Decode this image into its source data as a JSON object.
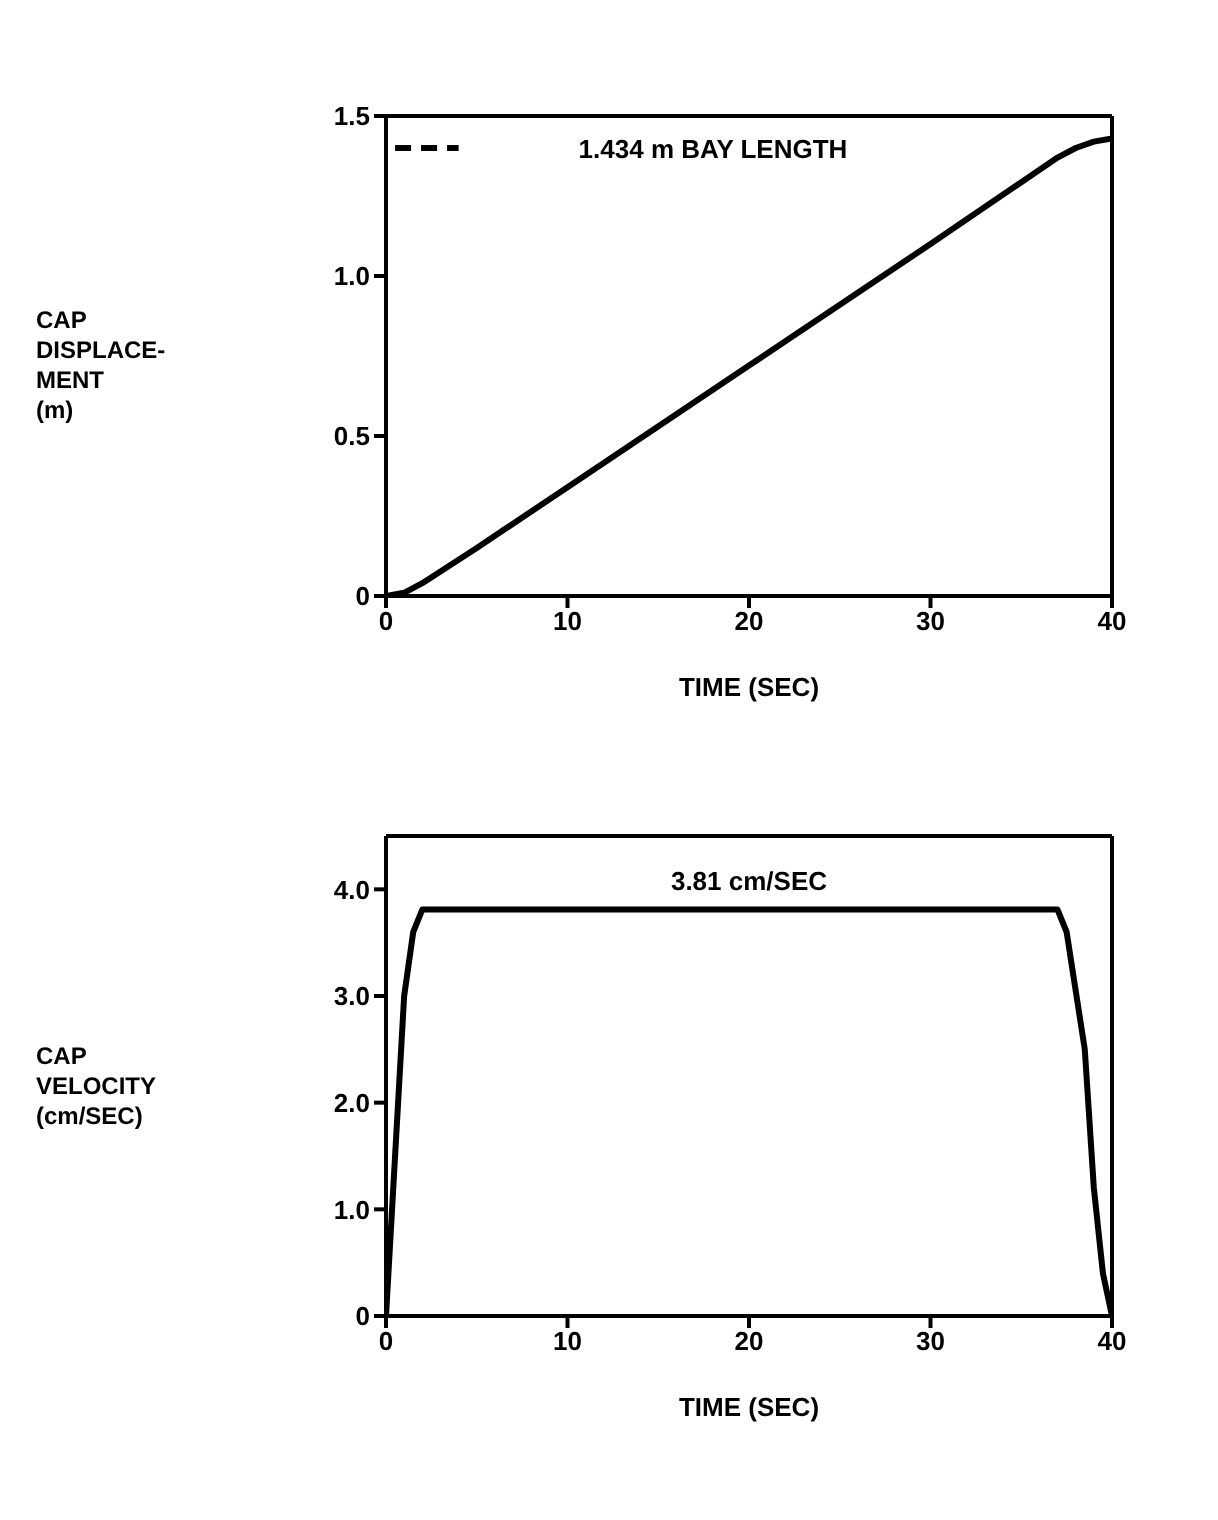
{
  "chart_data": [
    {
      "type": "line",
      "xlabel": "TIME (SEC)",
      "ylabel": "CAP\nDISPLACE-\nMENT\n(m)",
      "x": [
        0,
        1,
        2,
        5,
        10,
        20,
        30,
        37,
        38,
        39,
        40
      ],
      "series": [
        {
          "color": "#000000",
          "values": [
            0,
            0.01,
            0.04,
            0.15,
            0.34,
            0.72,
            1.1,
            1.37,
            1.4,
            1.42,
            1.43
          ]
        }
      ],
      "xlim": [
        0,
        40
      ],
      "xticks": [
        0,
        10,
        20,
        30,
        40
      ],
      "ylim": [
        0,
        1.5
      ],
      "yticks": [
        0,
        0.5,
        {
          "value": 1,
          "label": "1.0"
        },
        1.5
      ],
      "marker": "none",
      "line_style": "solid",
      "ref_lines": [
        {
          "axis": "y",
          "value": 1.4,
          "label": "1.434 m BAY LENGTH",
          "line_style": "dashed",
          "color": "#000000"
        }
      ]
    },
    {
      "type": "line",
      "xlabel": "TIME (SEC)",
      "ylabel": "CAP\nVELOCITY\n(cm/SEC)",
      "x": [
        0,
        0.5,
        1,
        1.5,
        2,
        37,
        37.5,
        38.5,
        39,
        39.5,
        40
      ],
      "series": [
        {
          "color": "#000000",
          "values": [
            0,
            1.5,
            3,
            3.6,
            3.81,
            3.81,
            3.6,
            2.5,
            1.2,
            0.4,
            0
          ]
        }
      ],
      "xlim": [
        0,
        40
      ],
      "xticks": [
        0,
        10,
        20,
        30,
        40
      ],
      "ylim": [
        0,
        4.5
      ],
      "yticks": [
        0,
        {
          "value": 1,
          "label": "1.0"
        },
        {
          "value": 2,
          "label": "2.0"
        },
        {
          "value": 3,
          "label": "3.0"
        },
        {
          "value": 4,
          "label": "4.0"
        }
      ],
      "marker": "none",
      "line_style": "solid",
      "annotations": [
        {
          "text": "3.81 cm/SEC",
          "x": 20,
          "y": 3.81
        }
      ]
    }
  ]
}
